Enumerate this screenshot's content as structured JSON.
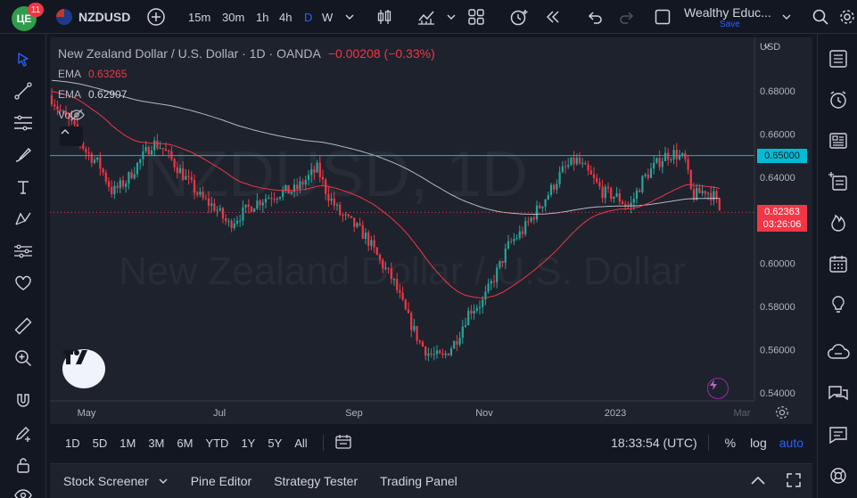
{
  "top_toolbar": {
    "notification_count": "11",
    "symbol": "NZDUSD",
    "intervals": [
      "15m",
      "30m",
      "1h",
      "4h",
      "D",
      "W"
    ],
    "active_interval": "D",
    "layout_name": "Wealthy Educ...",
    "layout_status": "Save"
  },
  "chart": {
    "symbol_title": "New Zealand Dollar / U.S. Dollar · 1D · OANDA",
    "change": "−0.00208 (−0.33%)",
    "ema1_label": "EMA",
    "ema1_value": "0.63265",
    "ema2_label": "EMA",
    "ema2_value": "0.62907",
    "vol_label": "Vol",
    "watermark_symbol": "NZDUSD, 1D",
    "watermark_name": "New Zealand Dollar / U.S. Dollar",
    "currency": "USD",
    "price_levels": [
      "0.68000",
      "0.66000",
      "0.64000",
      "0.62000",
      "0.60000",
      "0.58000",
      "0.56000",
      "0.54000"
    ],
    "horizontal_line_price": "0.65000",
    "last_price": "0.62363",
    "countdown": "03:26:06",
    "time_labels": [
      "May",
      "Jul",
      "Sep",
      "Nov",
      "2023",
      "Mar"
    ],
    "colors": {
      "up": "#26a69a",
      "down": "#f23645",
      "ema_fast": "#f23645",
      "ema_slow": "#d1d4dc",
      "hline": "#00bcd4"
    }
  },
  "range_bar": {
    "ranges": [
      "1D",
      "5D",
      "1M",
      "3M",
      "6M",
      "YTD",
      "1Y",
      "5Y",
      "All"
    ],
    "time": "18:33:54 (UTC)",
    "percent_label": "%",
    "log_label": "log",
    "auto_label": "auto"
  },
  "bottom_panel": {
    "tabs": [
      "Stock Screener",
      "Pine Editor",
      "Strategy Tester",
      "Trading Panel"
    ]
  }
}
